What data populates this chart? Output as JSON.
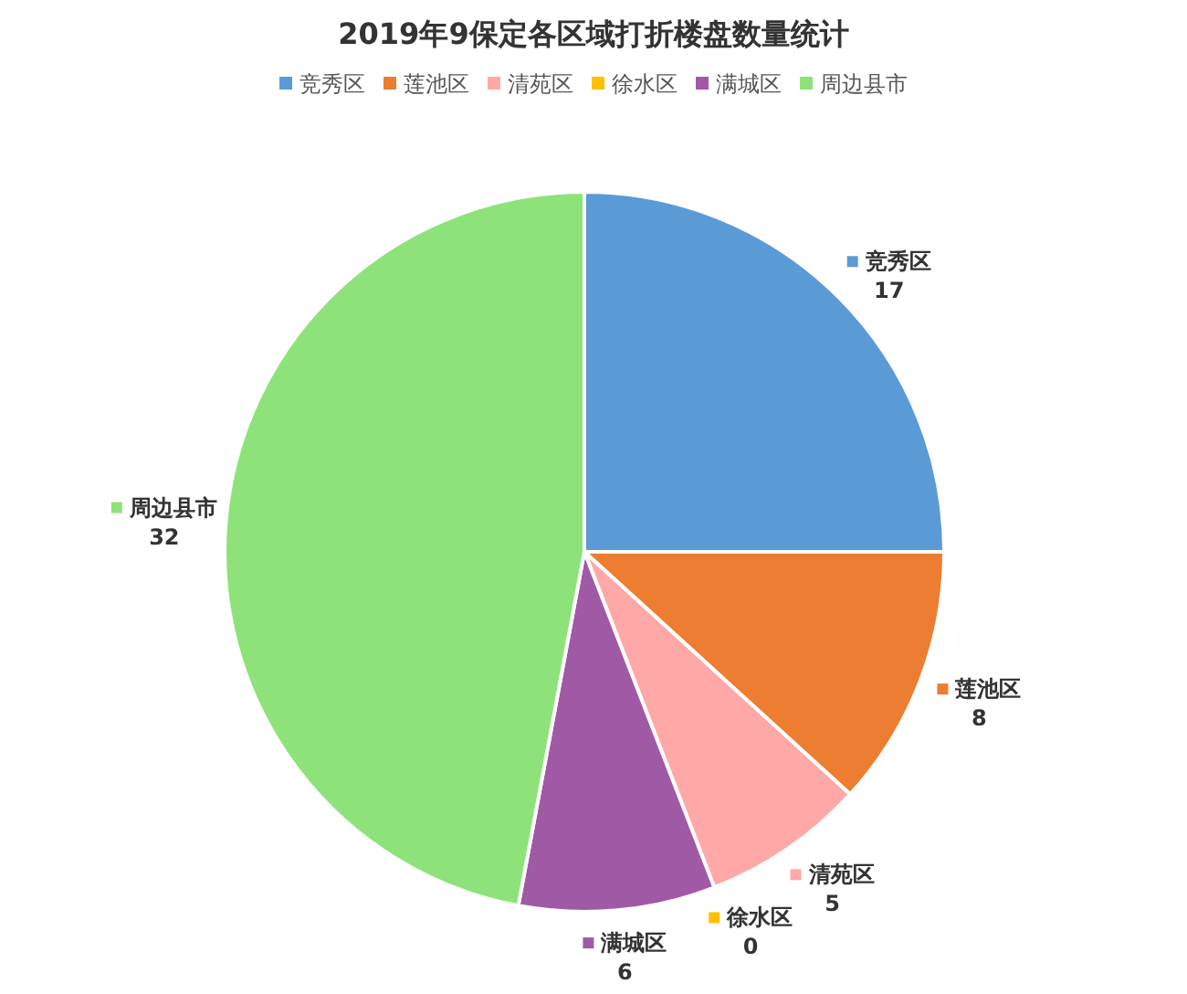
{
  "chart_data": {
    "type": "pie",
    "title": "2019年9保定各区域打折楼盘数量统计",
    "categories": [
      "竞秀区",
      "莲池区",
      "清苑区",
      "徐水区",
      "满城区",
      "周边县市"
    ],
    "values": [
      17,
      8,
      5,
      0,
      6,
      32
    ],
    "colors": [
      "#5b9bd5",
      "#ed7d31",
      "#ffa8a8",
      "#ffc000",
      "#a05aa5",
      "#8ee27a"
    ],
    "legend": "top",
    "value_labels": [
      "17",
      "8",
      "5",
      "0",
      "6",
      "32"
    ]
  }
}
